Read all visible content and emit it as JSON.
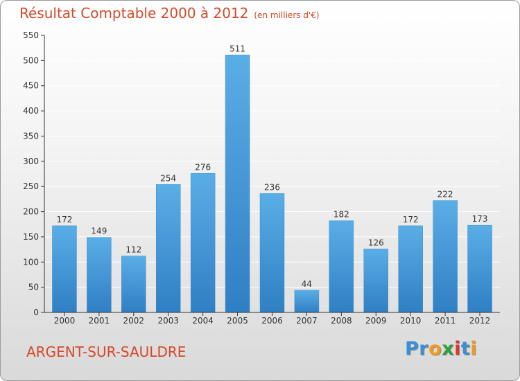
{
  "header": {
    "title": "Résultat Comptable 2000 à 2012",
    "unit": "(en milliers d'€)"
  },
  "footer": {
    "commune": "ARGENT-SUR-SAULDRE",
    "brand_letters": [
      "P",
      "r",
      "o",
      "x",
      "i",
      "t",
      "i"
    ],
    "brand_colors": [
      "#3b8fd6",
      "#3b8fd6",
      "#f29a1f",
      "#2f9e3f",
      "#e2332a",
      "#3b8fd6",
      "#f29a1f"
    ]
  },
  "colors": {
    "title": "#d5492a",
    "bar_light": "#5aaee6",
    "bar_dark": "#2f7fc4",
    "axis": "#333333",
    "grid": "#ffffff"
  },
  "chart_data": {
    "type": "bar",
    "title": "Résultat Comptable 2000 à 2012",
    "ylabel": "",
    "xlabel": "",
    "categories": [
      "2000",
      "2001",
      "2002",
      "2003",
      "2004",
      "2005",
      "2006",
      "2007",
      "2008",
      "2009",
      "2010",
      "2011",
      "2012"
    ],
    "values": [
      172,
      149,
      112,
      254,
      276,
      511,
      236,
      44,
      182,
      126,
      172,
      222,
      173
    ],
    "value_labels": [
      "172",
      "149",
      "112",
      "254",
      "276",
      "511",
      "236",
      "44",
      "182",
      "126",
      "172",
      "222",
      "173"
    ],
    "ylim": [
      0,
      550
    ],
    "yticks": [
      0,
      50,
      100,
      150,
      200,
      250,
      300,
      350,
      400,
      450,
      500,
      550
    ],
    "ytick_labels": [
      "0",
      "50",
      "100",
      "150",
      "200",
      "250",
      "300",
      "350",
      "400",
      "450",
      "500",
      "550"
    ],
    "grid": true
  }
}
